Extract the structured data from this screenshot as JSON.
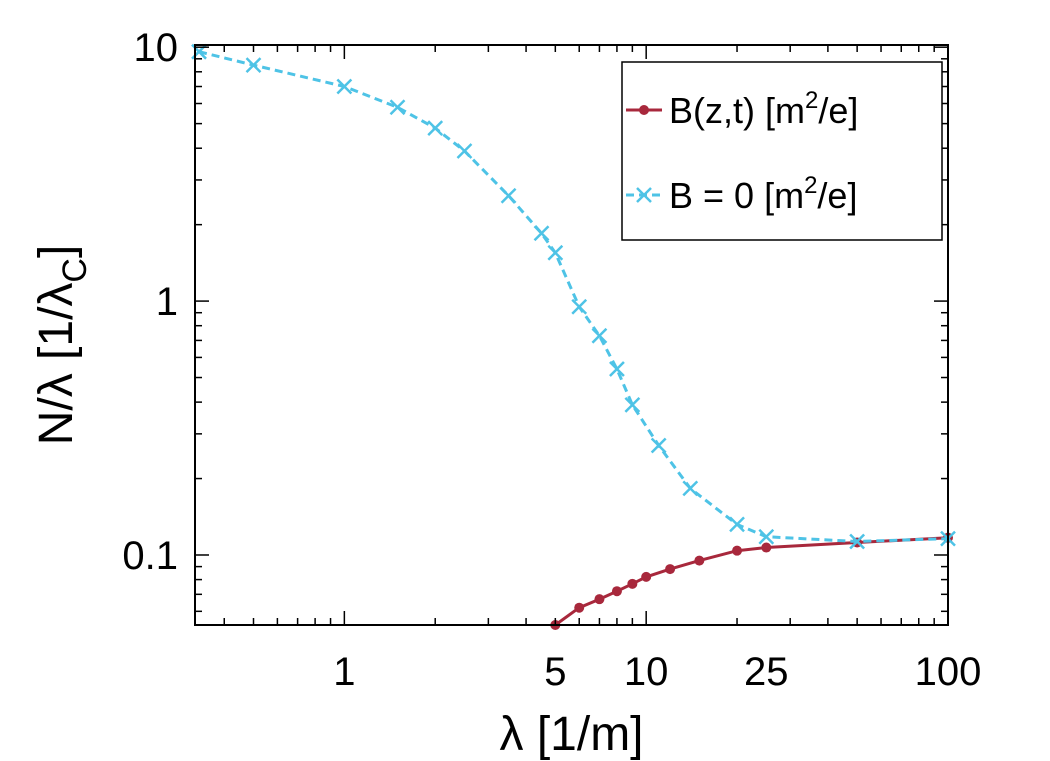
{
  "chart_data": {
    "type": "line",
    "x_scale": "log",
    "y_scale": "log",
    "xlabel": "λ [1/m]",
    "ylabel": "N/λ [1/λ_C]",
    "ylabel_parts": {
      "main": "N/λ [1/λ",
      "sub": "C",
      "close": "]"
    },
    "xlim": [
      0.32,
      100
    ],
    "ylim": [
      0.053,
      10.2
    ],
    "x_ticks": [
      {
        "value": 1,
        "label": "1"
      },
      {
        "value": 5,
        "label": "5"
      },
      {
        "value": 10,
        "label": "10"
      },
      {
        "value": 25,
        "label": "25"
      },
      {
        "value": 100,
        "label": "100"
      }
    ],
    "y_ticks": [
      {
        "value": 0.1,
        "label": "0.1"
      },
      {
        "value": 1,
        "label": "1"
      },
      {
        "value": 10,
        "label": "10"
      }
    ],
    "grid": false,
    "legend": {
      "position": "top-right",
      "entries": [
        {
          "label": "B(z,t) [m²/e]",
          "parts": {
            "pre": "B(z,t) [m",
            "sup": "2",
            "post": "/e]"
          }
        },
        {
          "label": "B = 0 [m²/e]",
          "parts": {
            "pre": "B = 0 [m",
            "sup": "2",
            "post": "/e]"
          }
        }
      ]
    },
    "series": [
      {
        "name": "B(z,t) [m²/e]",
        "color": "#a8283c",
        "marker": "dot",
        "dash": "solid",
        "x": [
          5,
          6,
          7,
          8,
          9,
          10,
          12,
          15,
          20,
          25,
          50,
          100
        ],
        "y": [
          0.053,
          0.062,
          0.067,
          0.072,
          0.077,
          0.082,
          0.088,
          0.095,
          0.104,
          0.107,
          0.112,
          0.117
        ]
      },
      {
        "name": "B = 0 [m²/e]",
        "color": "#4ec3e6",
        "marker": "x",
        "dash": "dashed",
        "x": [
          0.33,
          0.5,
          1,
          1.5,
          2,
          2.5,
          3.5,
          4.5,
          5,
          6,
          7,
          8,
          9,
          11,
          14,
          20,
          25,
          50,
          100
        ],
        "y": [
          9.6,
          8.5,
          7.0,
          5.8,
          4.8,
          3.9,
          2.6,
          1.85,
          1.55,
          0.95,
          0.73,
          0.54,
          0.39,
          0.27,
          0.183,
          0.132,
          0.118,
          0.113,
          0.116
        ]
      }
    ]
  }
}
